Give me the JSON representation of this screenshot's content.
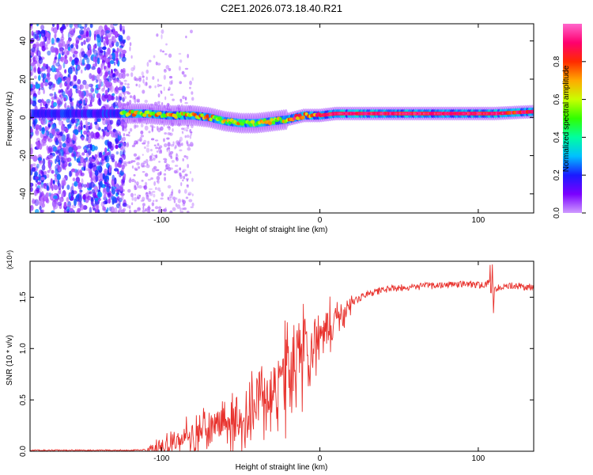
{
  "figure_title": "C2E1.2026.073.18.40.R21",
  "chart_data": [
    {
      "type": "heatmap",
      "title": "C2E1.2026.073.18.40.R21",
      "xlabel": "Height of straight line (km)",
      "ylabel": "Frequency (Hz)",
      "xlim": [
        -183,
        135
      ],
      "ylim": [
        -50,
        49
      ],
      "x_ticks": [
        -100,
        0,
        100
      ],
      "y_ticks": [
        -40,
        -20,
        0,
        20,
        40
      ],
      "colorbar": {
        "label": "Normalized spectral amplitude",
        "range": [
          0,
          1
        ],
        "ticks": [
          0.0,
          0.2,
          0.4,
          0.6,
          0.8
        ],
        "stops": [
          "#cf9bff",
          "#7a00ff",
          "#1a1aff",
          "#00c0ff",
          "#00ffa0",
          "#30ff00",
          "#c8ff00",
          "#ffaa00",
          "#ff2a00",
          "#ff006e",
          "#ff66cc"
        ]
      },
      "ridge": {
        "x": [
          -125,
          -110,
          -95,
          -80,
          -70,
          -60,
          -50,
          -40,
          -30,
          -20,
          -10,
          0,
          10,
          30,
          60,
          90,
          110,
          135
        ],
        "freq": [
          2,
          2,
          1,
          1,
          0,
          -2,
          -3,
          -3,
          -2,
          -1,
          1,
          1,
          2,
          2,
          2,
          2,
          2,
          3
        ]
      }
    },
    {
      "type": "line",
      "xlabel": "Height of straight line (km)",
      "ylabel": "SNR (10 * v/v)",
      "y_scale_label": "(x10⁴)",
      "xlim": [
        -183,
        135
      ],
      "ylim": [
        0,
        1.85
      ],
      "x_ticks": [
        -100,
        0,
        100
      ],
      "y_ticks": [
        "0.0",
        "0.5",
        "1.0",
        "1.5"
      ],
      "series": [
        {
          "name": "SNR",
          "color": "#e8312c",
          "x": [
            -183,
            -160,
            -140,
            -120,
            -110,
            -100,
            -90,
            -80,
            -70,
            -60,
            -50,
            -40,
            -30,
            -20,
            -10,
            0,
            10,
            20,
            30,
            40,
            50,
            60,
            70,
            80,
            90,
            100,
            105,
            108,
            110,
            115,
            120,
            135
          ],
          "y": [
            0.01,
            0.01,
            0.01,
            0.01,
            0.015,
            0.03,
            0.08,
            0.17,
            0.22,
            0.22,
            0.28,
            0.4,
            0.58,
            0.75,
            0.95,
            1.12,
            1.3,
            1.45,
            1.53,
            1.57,
            1.59,
            1.6,
            1.61,
            1.62,
            1.63,
            1.62,
            1.63,
            1.65,
            1.58,
            1.61,
            1.61,
            1.6
          ]
        }
      ]
    }
  ]
}
